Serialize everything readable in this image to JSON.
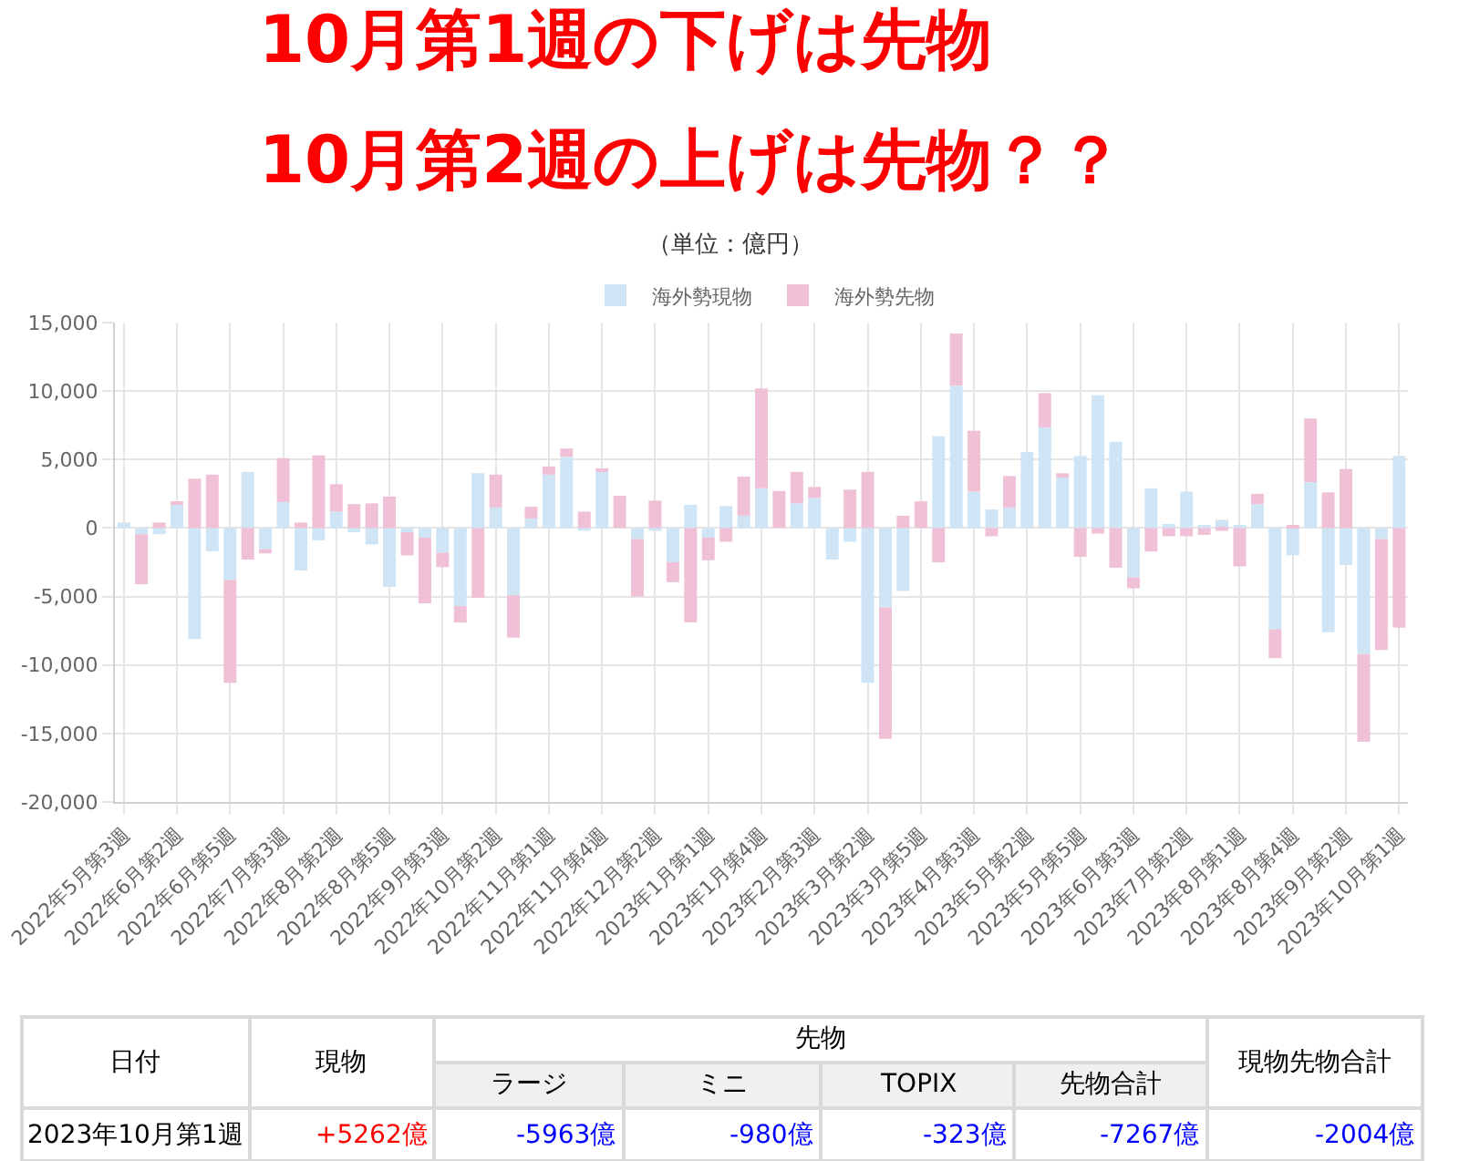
{
  "chart_data": {
    "type": "bar",
    "title": "10月第1週の下げは先物",
    "subtitle": "10月第2週の上げは先物？？",
    "stacked": true,
    "legend": "top",
    "grid": true,
    "categories": [
      "2022年5月第3週",
      null,
      null,
      "2022年6月第2週",
      null,
      null,
      "2022年6月第5週",
      null,
      null,
      "2022年7月第3週",
      null,
      null,
      "2022年8月第2週",
      null,
      null,
      "2022年8月第5週",
      null,
      null,
      "2022年9月第3週",
      null,
      null,
      "2022年10月第2週",
      null,
      null,
      "2022年11月第1週",
      null,
      null,
      "2022年11月第4週",
      null,
      null,
      "2022年12月第2週",
      null,
      null,
      "2023年1月第1週",
      null,
      null,
      "2023年1月第4週",
      null,
      null,
      "2023年2月第3週",
      null,
      null,
      "2023年3月第2週",
      null,
      null,
      "2023年3月第5週",
      null,
      null,
      "2023年4月第3週",
      null,
      null,
      "2023年5月第2週",
      null,
      null,
      "2023年5月第5週",
      null,
      null,
      "2023年6月第3週",
      null,
      null,
      "2023年7月第2週",
      null,
      null,
      "2023年8月第1週",
      null,
      null,
      "2023年8月第4週",
      null,
      null,
      "2023年9月第2週",
      null,
      null,
      "2023年10月第1週"
    ],
    "series": [
      {
        "name": "海外勢現物",
        "color": "#cfe4f5",
        "values": [
          400,
          -450,
          -450,
          1800,
          -8100,
          -1700,
          -3800,
          4100,
          -1550,
          1900,
          -3100,
          -900,
          1200,
          -300,
          -1200,
          -4300,
          -300,
          -700,
          -1800,
          -5700,
          4000,
          1500,
          -4900,
          700,
          3900,
          5200,
          -200,
          4100,
          0,
          -800,
          -200,
          -2500,
          1700,
          -700,
          1600,
          900,
          2900,
          0,
          1800,
          2200,
          -2300,
          -1000,
          -11300,
          -5800,
          -4600,
          0,
          6700,
          10400,
          2650,
          1350,
          1500,
          5550,
          7350,
          3800,
          5250,
          9700,
          6300,
          -3600,
          2900,
          300,
          2650,
          150,
          600,
          150,
          1750,
          -7400,
          -2000,
          3350,
          -7600,
          -2700,
          -9200,
          -800,
          5262
        ]
      },
      {
        "name": "海外勢先物",
        "color": "#efc0d6",
        "values": [
          0,
          -3650,
          400,
          100,
          3600,
          3900,
          -7500,
          -2300,
          -300,
          3200,
          400,
          5300,
          2000,
          1750,
          1800,
          2300,
          -1700,
          -4800,
          -1050,
          -1200,
          -5100,
          2400,
          -3100,
          850,
          600,
          600,
          1200,
          200,
          2350,
          -4200,
          2000,
          -1450,
          -6900,
          -1650,
          -1000,
          2850,
          7300,
          2700,
          2300,
          800,
          0,
          2800,
          4100,
          -9600,
          900,
          1950,
          -2500,
          3800,
          4450,
          -600,
          2300,
          0,
          2500,
          200,
          -2100,
          -400,
          -2900,
          -800,
          -1700,
          -600,
          -600,
          -500,
          -200,
          -2800,
          750,
          -2100,
          100,
          4650,
          2600,
          4300,
          -6400,
          -8100,
          -7267
        ]
      }
    ],
    "ylim": [
      -20000,
      15000
    ],
    "yticks": [
      {
        "value": -20000,
        "label": "-20,000"
      },
      {
        "value": -15000,
        "label": "-15,000"
      },
      {
        "value": -10000,
        "label": "-10,000"
      },
      {
        "value": -5000,
        "label": "-5,000"
      },
      {
        "value": 0,
        "label": "0"
      },
      {
        "value": 5000,
        "label": "5,000"
      },
      {
        "value": 10000,
        "label": "10,000"
      },
      {
        "value": 15000,
        "label": "15,000"
      }
    ],
    "annotations": [
      "（単位：億円）",
      "日付",
      "現物",
      "先物",
      "ラージ",
      "ミニ",
      "TOPIX",
      "先物合計",
      "現物先物合計",
      "2023年10月第1週",
      "+5262億",
      "-5963億",
      "-980億",
      "-323億",
      "-7267億",
      "-2004億"
    ]
  }
}
